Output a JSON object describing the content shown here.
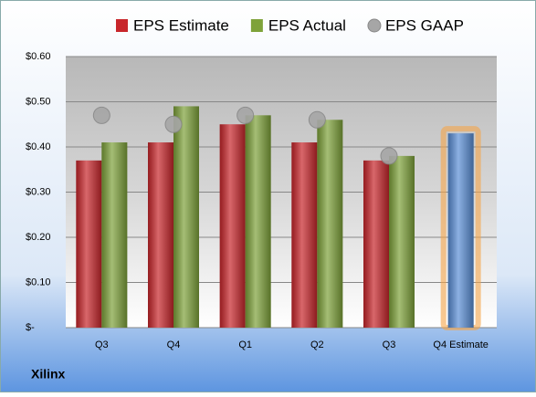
{
  "chart_data": {
    "type": "bar",
    "footer": "Xilinx",
    "categories": [
      "Q3",
      "Q4",
      "Q1",
      "Q2",
      "Q3",
      "Q4 Estimate"
    ],
    "series": [
      {
        "name": "EPS Estimate",
        "color": "#c8262b",
        "values": [
          0.37,
          0.41,
          0.45,
          0.41,
          0.37,
          null
        ]
      },
      {
        "name": "EPS Actual",
        "color": "#7ea23a",
        "values": [
          0.41,
          0.49,
          0.47,
          0.46,
          0.38,
          null
        ]
      },
      {
        "name": "EPS GAAP",
        "color": "#a6a6a6",
        "values": [
          0.47,
          0.45,
          0.47,
          0.46,
          0.38,
          null
        ],
        "marker": "circle"
      }
    ],
    "forecast": {
      "values": [
        null,
        null,
        null,
        null,
        null,
        0.43
      ],
      "color": "#5b8fd6",
      "glow": "#f5a54a"
    },
    "ylim": [
      0,
      0.6
    ],
    "yticks": [
      {
        "value": 0,
        "label": "$-"
      },
      {
        "value": 0.1,
        "label": "$0.10"
      },
      {
        "value": 0.2,
        "label": "$0.20"
      },
      {
        "value": 0.3,
        "label": "$0.30"
      },
      {
        "value": 0.4,
        "label": "$0.40"
      },
      {
        "value": 0.5,
        "label": "$0.50"
      },
      {
        "value": 0.6,
        "label": "$0.60"
      }
    ],
    "grid": true
  }
}
